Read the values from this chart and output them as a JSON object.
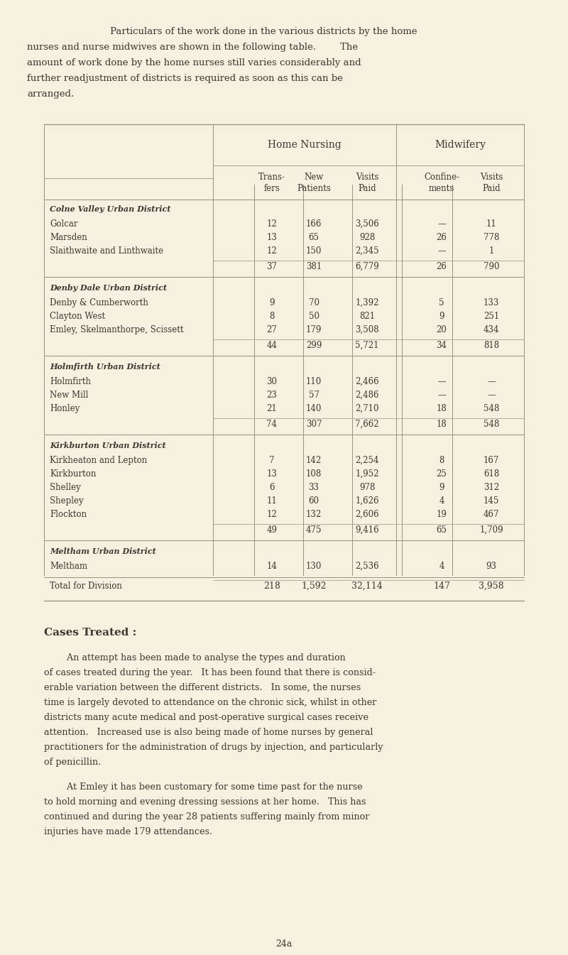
{
  "bg_color": "#f5f0e0",
  "text_color": "#3d3830",
  "line_color": "#9a9080",
  "header1": "Home Nursing",
  "header2": "Midwifery",
  "col_headers": [
    "Trans-\nfers",
    "New\nPatients",
    "Visits\nPaid",
    "Confine-\nments",
    "Visits\nPaid"
  ],
  "sections": [
    {
      "district": "Colne Valley Urban District",
      "rows": [
        {
          "name": "Golcar",
          "vals": [
            "12",
            "166",
            "3,506",
            "—",
            "11"
          ]
        },
        {
          "name": "Marsden",
          "vals": [
            "13",
            "65",
            "928",
            "26",
            "778"
          ]
        },
        {
          "name": "Slaithwaite and Linthwaite",
          "vals": [
            "12",
            "150",
            "2,345",
            "—",
            "1"
          ]
        }
      ],
      "totals": [
        "37",
        "381",
        "6,779",
        "26",
        "790"
      ]
    },
    {
      "district": "Denby Dale Urban District",
      "rows": [
        {
          "name": "Denby & Cumberworth",
          "vals": [
            "9",
            "70",
            "1,392",
            "5",
            "133"
          ]
        },
        {
          "name": "Clayton West",
          "vals": [
            "8",
            "50",
            "821",
            "9",
            "251"
          ]
        },
        {
          "name": "Emley, Skelmanthorpe, Scissett",
          "vals": [
            "27",
            "179",
            "3,508",
            "20",
            "434"
          ]
        }
      ],
      "totals": [
        "44",
        "299",
        "5,721",
        "34",
        "818"
      ]
    },
    {
      "district": "Holmfirth Urban District",
      "rows": [
        {
          "name": "Holmfirth",
          "vals": [
            "30",
            "110",
            "2,466",
            "—",
            "—"
          ]
        },
        {
          "name": "New Mill",
          "vals": [
            "23",
            "57",
            "2,486",
            "—",
            "—"
          ]
        },
        {
          "name": "Honley",
          "vals": [
            "21",
            "140",
            "2,710",
            "18",
            "548"
          ]
        }
      ],
      "totals": [
        "74",
        "307",
        "7,662",
        "18",
        "548"
      ]
    },
    {
      "district": "Kirkburton Urban District",
      "rows": [
        {
          "name": "Kirkheaton and Lepton",
          "vals": [
            "7",
            "142",
            "2,254",
            "8",
            "167"
          ]
        },
        {
          "name": "Kirkburton",
          "vals": [
            "13",
            "108",
            "1,952",
            "25",
            "618"
          ]
        },
        {
          "name": "Shelley",
          "vals": [
            "6",
            "33",
            "978",
            "9",
            "312"
          ]
        },
        {
          "name": "Shepley",
          "vals": [
            "11",
            "60",
            "1,626",
            "4",
            "145"
          ]
        },
        {
          "name": "Flockton",
          "vals": [
            "12",
            "132",
            "2,606",
            "19",
            "467"
          ]
        }
      ],
      "totals": [
        "49",
        "475",
        "9,416",
        "65",
        "1,709"
      ]
    },
    {
      "district": "Meltham Urban District",
      "rows": [
        {
          "name": "Meltham",
          "vals": [
            "14",
            "130",
            "2,536",
            "4",
            "93"
          ]
        }
      ],
      "totals": null
    }
  ],
  "grand_total_label": "Total for Division",
  "grand_totals": [
    "218",
    "1,592",
    "32,114",
    "147",
    "3,958"
  ],
  "intro_lines": [
    [
      "indent",
      "Particulars of the work done in the various districts by the home"
    ],
    [
      "left",
      "nurses and nurse midwives are shown in the following table.        The"
    ],
    [
      "left",
      "amount of work done by the home nurses still varies considerably and"
    ],
    [
      "left",
      "further readjustment of districts is required as soon as this can be"
    ],
    [
      "left",
      "arranged."
    ]
  ],
  "cases_treated_header": "Cases Treated :",
  "body1_lines": [
    "        An attempt has been made to analyse the types and duration",
    "of cases treated during the year.   It has been found that there is consid-",
    "erable variation between the different districts.   In some, the nurses",
    "time is largely devoted to attendance on the chronic sick, whilst in other",
    "districts many acute medical and post-operative surgical cases receive",
    "attention.   Increased use is also being made of home nurses by general",
    "practitioners for the administration of drugs by injection, and particularly",
    "of penicillin."
  ],
  "body2_lines": [
    "        At Emley it has been customary for some time past for the nurse",
    "to hold morning and evening dressing sessions at her home.   This has",
    "continued and during the year 28 patients suffering mainly from minor",
    "injuries have made 179 attendances."
  ],
  "page_num": "24a"
}
